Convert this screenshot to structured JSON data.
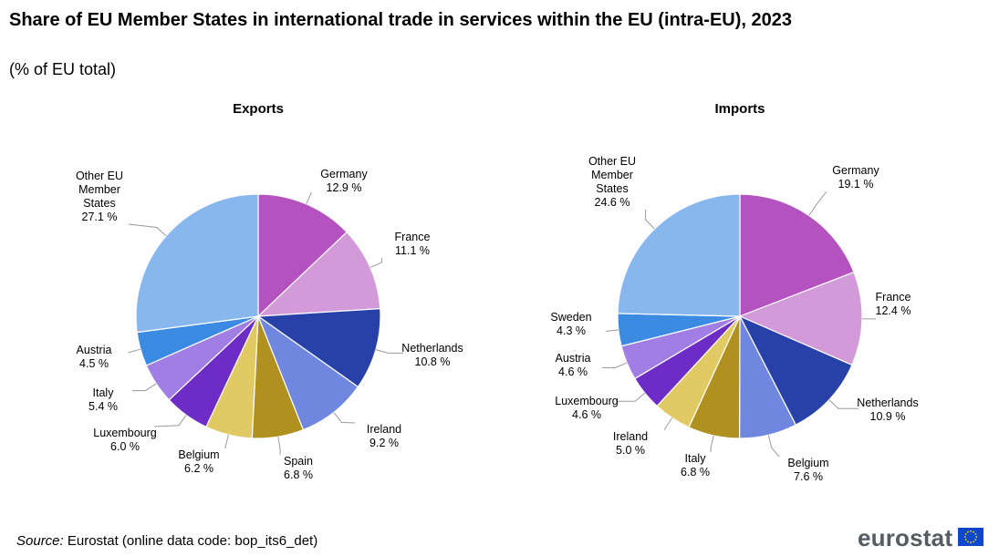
{
  "title": "Share of EU Member States in international trade in services within the EU (intra-EU), 2023",
  "subtitle": "(% of EU total)",
  "footer": {
    "source_label": "Source:",
    "source_text": " Eurostat (online data code: bop_its6_det)",
    "brand": "eurostat"
  },
  "icons": {
    "brand_flag": "eu-flag-icon"
  },
  "chart_data": [
    {
      "type": "pie",
      "title": "Exports",
      "unit": "%",
      "slices": [
        {
          "label": "Germany",
          "value": 12.9,
          "color": "#b452bf"
        },
        {
          "label": "France",
          "value": 11.1,
          "color": "#d39ad9"
        },
        {
          "label": "Netherlands",
          "value": 10.8,
          "color": "#2741a8"
        },
        {
          "label": "Ireland",
          "value": 9.2,
          "color": "#6f87de"
        },
        {
          "label": "Spain",
          "value": 6.8,
          "color": "#b0911f"
        },
        {
          "label": "Belgium",
          "value": 6.2,
          "color": "#e1c964"
        },
        {
          "label": "Luxembourg",
          "value": 6.0,
          "color": "#6e2cc6"
        },
        {
          "label": "Italy",
          "value": 5.4,
          "color": "#a07ee3"
        },
        {
          "label": "Austria",
          "value": 4.5,
          "color": "#3b8be3"
        },
        {
          "label": "Other EU Member States",
          "value": 27.1,
          "color": "#87b7ed"
        }
      ]
    },
    {
      "type": "pie",
      "title": "Imports",
      "unit": "%",
      "slices": [
        {
          "label": "Germany",
          "value": 19.1,
          "color": "#b452bf"
        },
        {
          "label": "France",
          "value": 12.4,
          "color": "#d39ad9"
        },
        {
          "label": "Netherlands",
          "value": 10.9,
          "color": "#2741a8"
        },
        {
          "label": "Belgium",
          "value": 7.6,
          "color": "#6f87de"
        },
        {
          "label": "Italy",
          "value": 6.8,
          "color": "#b0911f"
        },
        {
          "label": "Ireland",
          "value": 5.0,
          "color": "#e1c964"
        },
        {
          "label": "Luxembourg",
          "value": 4.6,
          "color": "#6e2cc6"
        },
        {
          "label": "Austria",
          "value": 4.6,
          "color": "#a07ee3"
        },
        {
          "label": "Sweden",
          "value": 4.3,
          "color": "#3b8be3"
        },
        {
          "label": "Other EU Member States",
          "value": 24.6,
          "color": "#87b7ed"
        }
      ]
    }
  ]
}
